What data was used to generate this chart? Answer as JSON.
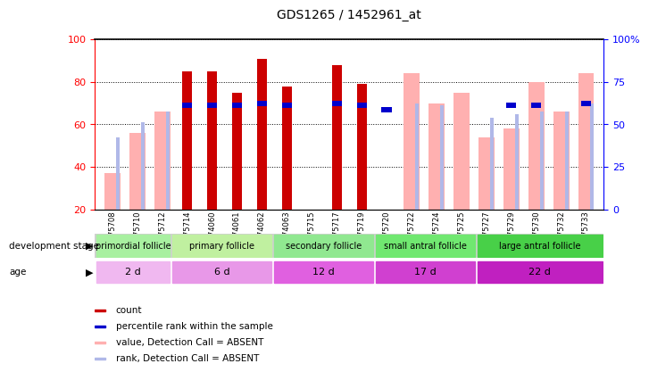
{
  "title": "GDS1265 / 1452961_at",
  "samples": [
    "GSM75708",
    "GSM75710",
    "GSM75712",
    "GSM75714",
    "GSM74060",
    "GSM74061",
    "GSM74062",
    "GSM74063",
    "GSM75715",
    "GSM75717",
    "GSM75719",
    "GSM75720",
    "GSM75722",
    "GSM75724",
    "GSM75725",
    "GSM75727",
    "GSM75729",
    "GSM75730",
    "GSM75732",
    "GSM75733"
  ],
  "count_values": [
    null,
    null,
    null,
    85,
    85,
    75,
    91,
    78,
    null,
    88,
    79,
    null,
    null,
    null,
    null,
    null,
    null,
    null,
    null,
    null
  ],
  "rank_values": [
    null,
    null,
    null,
    69,
    69,
    69,
    70,
    69,
    null,
    70,
    69,
    67,
    null,
    null,
    null,
    null,
    69,
    69,
    null,
    70
  ],
  "value_absent": [
    37,
    56,
    66,
    null,
    null,
    null,
    null,
    null,
    null,
    null,
    null,
    null,
    84,
    70,
    75,
    54,
    58,
    80,
    66,
    84
  ],
  "rank_absent": [
    54,
    61,
    66,
    null,
    null,
    null,
    null,
    null,
    null,
    null,
    null,
    null,
    70,
    69,
    null,
    63,
    65,
    66,
    66,
    70
  ],
  "groups": [
    {
      "label": "primordial follicle",
      "start": 0,
      "end": 3,
      "color": "#a8f0a0"
    },
    {
      "label": "primary follicle",
      "start": 3,
      "end": 7,
      "color": "#c0f0a0"
    },
    {
      "label": "secondary follicle",
      "start": 7,
      "end": 11,
      "color": "#90e890"
    },
    {
      "label": "small antral follicle",
      "start": 11,
      "end": 15,
      "color": "#70e870"
    },
    {
      "label": "large antral follicle",
      "start": 15,
      "end": 20,
      "color": "#48d048"
    }
  ],
  "age_groups": [
    {
      "label": "2 d",
      "start": 0,
      "end": 3,
      "color": "#f0b8f0"
    },
    {
      "label": "6 d",
      "start": 3,
      "end": 7,
      "color": "#e898e8"
    },
    {
      "label": "12 d",
      "start": 7,
      "end": 11,
      "color": "#e060e0"
    },
    {
      "label": "17 d",
      "start": 11,
      "end": 15,
      "color": "#d040d0"
    },
    {
      "label": "22 d",
      "start": 15,
      "end": 20,
      "color": "#c020c0"
    }
  ],
  "count_color": "#cc0000",
  "rank_color": "#0000cc",
  "value_absent_color": "#ffb0b0",
  "rank_absent_color": "#b0b8e8",
  "legend_items": [
    {
      "color": "#cc0000",
      "label": "count"
    },
    {
      "color": "#0000cc",
      "label": "percentile rank within the sample"
    },
    {
      "color": "#ffb0b0",
      "label": "value, Detection Call = ABSENT"
    },
    {
      "color": "#b0b8e8",
      "label": "rank, Detection Call = ABSENT"
    }
  ]
}
